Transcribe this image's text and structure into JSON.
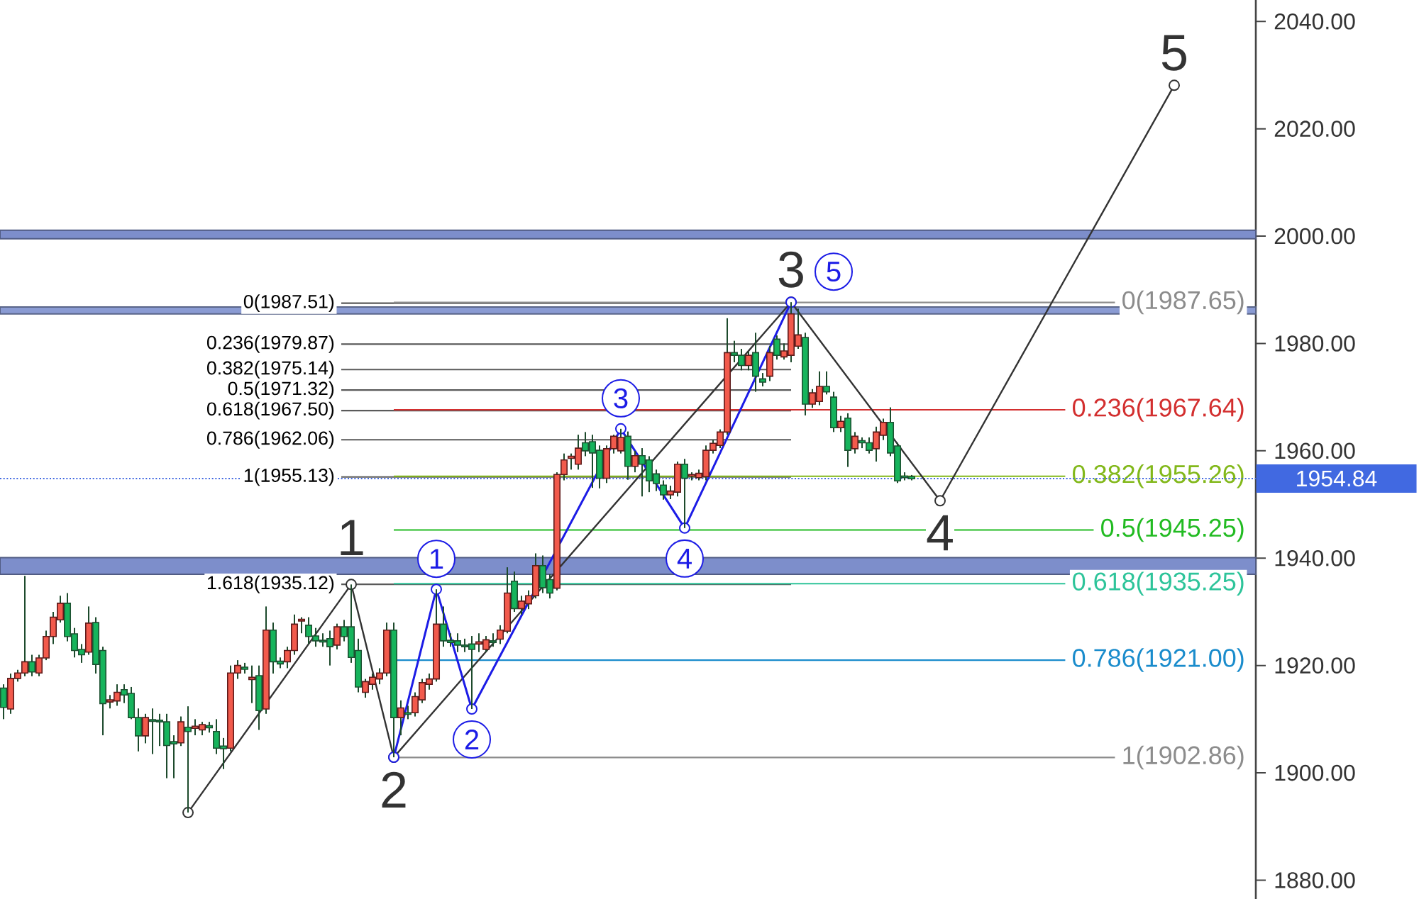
{
  "chart_data": {
    "type": "candlestick",
    "categories": [
      null,
      null,
      null,
      null,
      null,
      null,
      null,
      null,
      null,
      null,
      null,
      null,
      null,
      null,
      null,
      null,
      null,
      null,
      null,
      null,
      null,
      null,
      null,
      null,
      null,
      null,
      null,
      null,
      null,
      null,
      null,
      null,
      null,
      null,
      null,
      null,
      null,
      null,
      null,
      null,
      null,
      null,
      null,
      null,
      null,
      null,
      null,
      null,
      null,
      null,
      null,
      null,
      null,
      null,
      null,
      null,
      null,
      null,
      null,
      null,
      null,
      null,
      null,
      null,
      null,
      null,
      null,
      null,
      null,
      null,
      null,
      null,
      null,
      null,
      null,
      null,
      null,
      null,
      null,
      null,
      null,
      null,
      null,
      null,
      null,
      null,
      null,
      null,
      null,
      null,
      null,
      null,
      null,
      null,
      null,
      null,
      null,
      null,
      null,
      null,
      null,
      null,
      null,
      null,
      null,
      null,
      null,
      null,
      null,
      null,
      null,
      null,
      null,
      null,
      null,
      null,
      null,
      null,
      null,
      null,
      null,
      null,
      null,
      null,
      null,
      null,
      null,
      null,
      null,
      null,
      null,
      null,
      null,
      null,
      null,
      null,
      null,
      null,
      null,
      null,
      null,
      null,
      null,
      null,
      null,
      null,
      null,
      null,
      null,
      null,
      null,
      null,
      null,
      null,
      null,
      null,
      null,
      null,
      null,
      null,
      null,
      null,
      null,
      null,
      null,
      null,
      null,
      null,
      null,
      null,
      null,
      null,
      null,
      null,
      null,
      null,
      null
    ],
    "ohlc": [
      [
        1915.8,
        1916.5,
        1910.0,
        1912.2
      ],
      [
        1911.9,
        1918.5,
        1911.0,
        1917.6
      ],
      [
        1917.6,
        1919.2,
        1917.0,
        1918.6
      ],
      [
        1918.6,
        1936.7,
        1918.0,
        1920.7
      ],
      [
        1920.7,
        1922.0,
        1918.0,
        1918.8
      ],
      [
        1918.6,
        1922.0,
        1918.0,
        1921.4
      ],
      [
        1921.4,
        1926.5,
        1921.0,
        1925.4
      ],
      [
        1925.4,
        1930.0,
        1924.0,
        1929.0
      ],
      [
        1928.5,
        1933.0,
        1928.0,
        1931.6
      ],
      [
        1931.6,
        1933.5,
        1924.5,
        1925.4
      ],
      [
        1925.9,
        1927.0,
        1921.5,
        1922.8
      ],
      [
        1923.0,
        1924.0,
        1920.5,
        1922.0
      ],
      [
        1922.5,
        1931.0,
        1922.0,
        1927.9
      ],
      [
        1928.0,
        1929.0,
        1918.5,
        1920.2
      ],
      [
        1922.8,
        1923.5,
        1907.0,
        1912.9
      ],
      [
        1913.2,
        1914.5,
        1912.0,
        1913.6
      ],
      [
        1913.4,
        1916.5,
        1912.5,
        1915.0
      ],
      [
        1915.5,
        1916.5,
        1913.0,
        1914.5
      ],
      [
        1914.8,
        1916.0,
        1910.0,
        1910.3
      ],
      [
        1910.3,
        1912.0,
        1904.0,
        1906.9
      ],
      [
        1906.9,
        1911.0,
        1905.5,
        1910.3
      ],
      [
        1909.9,
        1912.0,
        1903.5,
        1909.6
      ],
      [
        1909.8,
        1911.0,
        1905.0,
        1909.5
      ],
      [
        1909.5,
        1911.0,
        1899.0,
        1905.1
      ],
      [
        1905.8,
        1907.0,
        1899.0,
        1905.4
      ],
      [
        1905.6,
        1910.5,
        1905.0,
        1909.5
      ],
      [
        1908.5,
        1912.4,
        1892.6,
        1907.7
      ],
      [
        1908.3,
        1910.0,
        1907.0,
        1908.7
      ],
      [
        1908.0,
        1909.5,
        1907.0,
        1909.0
      ],
      [
        1908.8,
        1909.5,
        1907.5,
        1908.4
      ],
      [
        1907.7,
        1910.0,
        1903.5,
        1904.6
      ],
      [
        1905.0,
        1906.5,
        1900.7,
        1904.5
      ],
      [
        1904.6,
        1920.0,
        1904.0,
        1918.6
      ],
      [
        1918.6,
        1921.0,
        1917.5,
        1920.0
      ],
      [
        1919.7,
        1920.5,
        1918.5,
        1919.3
      ],
      [
        1917.4,
        1920.0,
        1913.0,
        1917.8
      ],
      [
        1918.1,
        1920.0,
        1908.0,
        1911.6
      ],
      [
        1911.9,
        1931.0,
        1911.0,
        1926.6
      ],
      [
        1926.6,
        1928.0,
        1918.5,
        1920.7
      ],
      [
        1920.8,
        1921.5,
        1919.5,
        1920.3
      ],
      [
        1920.7,
        1923.5,
        1919.5,
        1922.8
      ],
      [
        1922.8,
        1929.5,
        1922.0,
        1927.7
      ],
      [
        1928.3,
        1929.0,
        1926.0,
        1928.6
      ],
      [
        1927.5,
        1929.0,
        1924.0,
        1925.4
      ],
      [
        1925.5,
        1927.0,
        1923.5,
        1924.6
      ],
      [
        1924.7,
        1926.0,
        1923.5,
        1924.4
      ],
      [
        1925.0,
        1926.5,
        1920.0,
        1923.5
      ],
      [
        1923.8,
        1927.8,
        1923.0,
        1927.2
      ],
      [
        1927.2,
        1928.5,
        1924.5,
        1925.4
      ],
      [
        1927.2,
        1935.1,
        1920.5,
        1921.5
      ],
      [
        1922.8,
        1925.0,
        1915.0,
        1916.0
      ],
      [
        1915.0,
        1917.5,
        1914.0,
        1917.0
      ],
      [
        1916.5,
        1918.5,
        1915.5,
        1917.8
      ],
      [
        1917.5,
        1919.5,
        1916.5,
        1918.6
      ],
      [
        1918.6,
        1928.0,
        1918.0,
        1926.6
      ],
      [
        1926.6,
        1928.0,
        1902.9,
        1910.3
      ],
      [
        1910.3,
        1913.5,
        1907.0,
        1912.1
      ],
      [
        1911.2,
        1912.5,
        1910.0,
        1910.9
      ],
      [
        1911.2,
        1915.0,
        1910.5,
        1914.2
      ],
      [
        1913.6,
        1917.5,
        1913.0,
        1916.8
      ],
      [
        1916.5,
        1918.5,
        1915.5,
        1917.5
      ],
      [
        1917.5,
        1934.2,
        1917.0,
        1927.7
      ],
      [
        1927.7,
        1931.0,
        1923.5,
        1924.6
      ],
      [
        1924.7,
        1926.0,
        1923.5,
        1924.3
      ],
      [
        1924.6,
        1926.0,
        1922.5,
        1923.8
      ],
      [
        1923.8,
        1925.0,
        1922.5,
        1923.5
      ],
      [
        1924.0,
        1925.5,
        1911.9,
        1923.0
      ],
      [
        1924.0,
        1926.0,
        1922.5,
        1924.4
      ],
      [
        1923.0,
        1925.5,
        1922.5,
        1924.8
      ],
      [
        1924.6,
        1926.0,
        1923.5,
        1924.3
      ],
      [
        1924.9,
        1927.5,
        1924.0,
        1926.6
      ],
      [
        1926.4,
        1938.3,
        1926.0,
        1933.5
      ],
      [
        1935.7,
        1937.5,
        1930.0,
        1930.6
      ],
      [
        1930.6,
        1933.0,
        1929.5,
        1932.0
      ],
      [
        1931.5,
        1934.0,
        1930.5,
        1933.0
      ],
      [
        1933.0,
        1940.9,
        1932.5,
        1938.6
      ],
      [
        1938.6,
        1940.5,
        1933.5,
        1934.5
      ],
      [
        1936.0,
        1937.0,
        1932.5,
        1933.5
      ],
      [
        1934.4,
        1956.0,
        1934.0,
        1955.6
      ],
      [
        1955.6,
        1959.5,
        1954.5,
        1958.3
      ],
      [
        1958.6,
        1959.5,
        1956.5,
        1959.0
      ],
      [
        1957.5,
        1963.0,
        1956.5,
        1960.5
      ],
      [
        1961.5,
        1963.5,
        1959.0,
        1960.0
      ],
      [
        1961.7,
        1963.0,
        1953.1,
        1959.6
      ],
      [
        1960.1,
        1961.0,
        1953.0,
        1954.9
      ],
      [
        1954.9,
        1961.0,
        1954.0,
        1960.4
      ],
      [
        1960.4,
        1963.0,
        1959.5,
        1962.7
      ],
      [
        1960.0,
        1964.1,
        1959.5,
        1962.5
      ],
      [
        1962.7,
        1963.6,
        1954.6,
        1957.1
      ],
      [
        1957.1,
        1960.0,
        1956.0,
        1959.1
      ],
      [
        1959.1,
        1960.5,
        1951.5,
        1957.5
      ],
      [
        1958.3,
        1959.0,
        1952.3,
        1954.4
      ],
      [
        1955.7,
        1956.5,
        1952.5,
        1953.9
      ],
      [
        1953.6,
        1954.5,
        1950.9,
        1951.8
      ],
      [
        1951.8,
        1953.5,
        1951.0,
        1952.5
      ],
      [
        1952.3,
        1958.0,
        1951.5,
        1957.5
      ],
      [
        1957.5,
        1958.5,
        1945.6,
        1954.9
      ],
      [
        1955.3,
        1956.0,
        1954.5,
        1955.6
      ],
      [
        1955.0,
        1956.5,
        1954.5,
        1955.8
      ],
      [
        1955.2,
        1961.0,
        1954.5,
        1960.1
      ],
      [
        1960.1,
        1962.0,
        1959.5,
        1961.4
      ],
      [
        1961.0,
        1964.0,
        1960.5,
        1963.5
      ],
      [
        1963.5,
        1984.7,
        1963.0,
        1978.3
      ],
      [
        1978.3,
        1980.5,
        1976.5,
        1977.8
      ],
      [
        1977.8,
        1979.0,
        1975.0,
        1975.9
      ],
      [
        1975.9,
        1978.5,
        1975.0,
        1977.8
      ],
      [
        1978.3,
        1982.0,
        1971.0,
        1973.9
      ],
      [
        1973.4,
        1974.5,
        1972.0,
        1972.8
      ],
      [
        1973.9,
        1979.5,
        1973.0,
        1978.3
      ],
      [
        1980.8,
        1981.5,
        1977.0,
        1977.8
      ],
      [
        1977.5,
        1980.0,
        1977.0,
        1978.6
      ],
      [
        1977.8,
        1987.7,
        1976.5,
        1985.5
      ],
      [
        1979.5,
        1986.5,
        1979.0,
        1981.6
      ],
      [
        1981.1,
        1982.0,
        1966.6,
        1968.7
      ],
      [
        1968.7,
        1971.5,
        1968.0,
        1970.8
      ],
      [
        1969.2,
        1974.8,
        1968.5,
        1972.0
      ],
      [
        1972.0,
        1974.8,
        1970.5,
        1971.0
      ],
      [
        1970.0,
        1971.0,
        1963.5,
        1964.3
      ],
      [
        1964.3,
        1966.5,
        1963.5,
        1965.5
      ],
      [
        1966.1,
        1967.0,
        1957.0,
        1960.1
      ],
      [
        1960.4,
        1963.5,
        1959.5,
        1962.7
      ],
      [
        1961.9,
        1962.5,
        1960.5,
        1961.5
      ],
      [
        1961.5,
        1962.5,
        1959.5,
        1960.1
      ],
      [
        1960.4,
        1964.5,
        1958.0,
        1963.5
      ],
      [
        1962.9,
        1966.0,
        1962.0,
        1965.3
      ],
      [
        1965.3,
        1968.1,
        1959.0,
        1959.6
      ],
      [
        1960.9,
        1961.5,
        1954.0,
        1954.4
      ],
      [
        1955.3,
        1956.0,
        1954.5,
        1955.0
      ],
      [
        1955.2,
        1955.5,
        1954.5,
        1954.8
      ],
      null,
      null,
      null,
      null,
      null,
      null,
      null,
      null,
      null,
      null,
      null,
      null,
      null,
      null,
      null,
      null,
      null,
      null,
      null,
      null,
      null,
      null,
      null,
      null,
      null,
      null,
      null,
      null,
      null,
      null,
      null,
      null,
      null,
      null,
      null,
      null,
      null,
      null,
      null,
      null,
      null,
      null,
      null,
      null,
      null,
      null,
      null,
      null
    ],
    "ylim": [
      1876.5,
      2044
    ],
    "yticks": [
      {
        "value": 1880,
        "label": "1880.00"
      },
      {
        "value": 1900,
        "label": "1900.00"
      },
      {
        "value": 1920,
        "label": "1920.00"
      },
      {
        "value": 1940,
        "label": "1940.00"
      },
      {
        "value": 1960,
        "label": "1960.00"
      },
      {
        "value": 1980,
        "label": "1980.00"
      },
      {
        "value": 2000,
        "label": "2000.00"
      },
      {
        "value": 2020,
        "label": "2020.00"
      },
      {
        "value": 2040,
        "label": "2040.00"
      }
    ],
    "tick_labels": "y",
    "marker": "circle",
    "series": [
      {
        "type": "line",
        "color": "#333333",
        "values": [
          null,
          null,
          null,
          null,
          null,
          null,
          null,
          null,
          null,
          null,
          null,
          null,
          null,
          null,
          null,
          null,
          null,
          null,
          null,
          null,
          null,
          null,
          null,
          null,
          null,
          null,
          1892.6,
          null,
          null,
          null,
          null,
          null,
          null,
          null,
          null,
          null,
          null,
          null,
          null,
          null,
          null,
          null,
          null,
          null,
          null,
          null,
          null,
          null,
          null,
          1935.1,
          null,
          null,
          null,
          null,
          null,
          1902.9,
          null,
          null,
          null,
          null,
          null,
          null,
          null,
          null,
          null,
          null,
          null,
          null,
          null,
          null,
          null,
          null,
          null,
          null,
          null,
          null,
          null,
          null,
          null,
          null,
          null,
          null,
          null,
          null,
          null,
          null,
          null,
          null,
          null,
          null,
          null,
          null,
          null,
          null,
          null,
          null,
          null,
          null,
          null,
          null,
          null,
          null,
          null,
          null,
          null,
          null,
          null,
          null,
          null,
          null,
          null,
          1987.7,
          null,
          null,
          null,
          null,
          null,
          null,
          null,
          null,
          null,
          null,
          null,
          null,
          null,
          null,
          null,
          null,
          null,
          null,
          null,
          null,
          1950.7,
          null,
          null,
          null,
          null,
          null,
          null,
          null,
          null,
          null,
          null,
          null,
          null,
          null,
          null,
          null,
          null,
          null,
          null,
          null,
          null,
          null,
          null,
          null,
          null,
          null,
          null,
          null,
          null,
          null,
          null,
          null,
          null,
          2028.1,
          null,
          null,
          null,
          null,
          null,
          null,
          null,
          null,
          null,
          null,
          null
        ]
      },
      {
        "type": "line",
        "color": "#1c1ce6",
        "values": [
          null,
          null,
          null,
          null,
          null,
          null,
          null,
          null,
          null,
          null,
          null,
          null,
          null,
          null,
          null,
          null,
          null,
          null,
          null,
          null,
          null,
          null,
          null,
          null,
          null,
          null,
          null,
          null,
          null,
          null,
          null,
          null,
          null,
          null,
          null,
          null,
          null,
          null,
          null,
          null,
          null,
          null,
          null,
          null,
          null,
          null,
          null,
          null,
          null,
          null,
          null,
          null,
          null,
          null,
          null,
          1902.9,
          null,
          null,
          null,
          null,
          null,
          1934.2,
          null,
          null,
          null,
          null,
          1911.9,
          null,
          null,
          null,
          null,
          null,
          null,
          null,
          null,
          null,
          null,
          null,
          null,
          null,
          null,
          null,
          null,
          null,
          null,
          null,
          null,
          1964.1,
          null,
          null,
          null,
          null,
          null,
          null,
          null,
          null,
          1945.6,
          null,
          null,
          null,
          null,
          null,
          null,
          null,
          null,
          null,
          null,
          null,
          null,
          null,
          null,
          1987.7,
          null,
          null,
          null,
          null,
          null,
          null,
          null,
          null,
          null,
          null,
          null,
          null,
          null,
          null,
          null,
          null,
          null,
          null,
          null,
          null,
          null,
          null,
          null,
          null,
          null,
          null,
          null,
          null,
          null,
          null,
          null,
          null,
          null,
          null,
          null,
          null,
          null,
          null,
          null,
          null,
          null,
          null,
          null,
          null,
          null,
          null,
          null,
          null,
          null,
          null,
          null,
          null,
          null,
          null,
          null,
          null,
          null,
          null,
          null,
          null,
          null,
          null,
          null,
          null,
          null
        ]
      }
    ],
    "annotations": [
      {
        "text": "1",
        "y": 1935.1
      },
      {
        "text": "2",
        "y": 1902.9
      },
      {
        "text": "3",
        "y": 1987.7
      },
      {
        "text": "4",
        "y": 1950.7
      },
      {
        "text": "5",
        "y": 2028.1
      },
      {
        "text": "1",
        "y": 1934.2
      },
      {
        "text": "2",
        "y": 1911.9
      },
      {
        "text": "3",
        "y": 1964.1
      },
      {
        "text": "4",
        "y": 1945.6
      },
      {
        "text": "5",
        "y": 1987.7
      }
    ],
    "ref_lines": [
      {
        "axis": "y",
        "value": 1987.51,
        "label": "0(1987.51)",
        "color": "#5a5a5a"
      },
      {
        "axis": "y",
        "value": 1979.87,
        "label": "0.236(1979.87)",
        "color": "#5a5a5a"
      },
      {
        "axis": "y",
        "value": 1975.14,
        "label": "0.382(1975.14)",
        "color": "#5a5a5a"
      },
      {
        "axis": "y",
        "value": 1971.32,
        "label": "0.5(1971.32)",
        "color": "#5a5a5a"
      },
      {
        "axis": "y",
        "value": 1967.5,
        "label": "0.618(1967.50)",
        "color": "#5a5a5a"
      },
      {
        "axis": "y",
        "value": 1962.06,
        "label": "0.786(1962.06)",
        "color": "#5a5a5a"
      },
      {
        "axis": "y",
        "value": 1955.13,
        "label": "1(1955.13)",
        "color": "#5a5a5a"
      },
      {
        "axis": "y",
        "value": 1935.12,
        "label": "1.618(1935.12)",
        "color": "#5a5a5a"
      },
      {
        "axis": "y",
        "value": 1987.65,
        "label": "0(1987.65)",
        "color": "#8c8c8c"
      },
      {
        "axis": "y",
        "value": 1967.64,
        "label": "0.236(1967.64)",
        "color": "#d32f2f"
      },
      {
        "axis": "y",
        "value": 1955.26,
        "label": "0.382(1955.26)",
        "color": "#82b81a"
      },
      {
        "axis": "y",
        "value": 1945.25,
        "label": "0.5(1945.25)",
        "color": "#22bb22"
      },
      {
        "axis": "y",
        "value": 1935.25,
        "label": "0.618(1935.25)",
        "color": "#2ec49a"
      },
      {
        "axis": "y",
        "value": 1921.0,
        "label": "0.786(1921.00)",
        "color": "#1a8ccc"
      },
      {
        "axis": "y",
        "value": 1902.86,
        "label": "1(1902.86)",
        "color": "#8c8c8c"
      },
      {
        "axis": "y",
        "value": 1954.84,
        "label": "1954.84",
        "color": "#4169e1",
        "line_style": "dotted"
      }
    ],
    "bands": [
      {
        "axis": "y",
        "from": 1937.0,
        "to": 1940.1,
        "color": "#7d8ecb"
      },
      {
        "axis": "y",
        "from": 1985.5,
        "to": 1986.8,
        "color": "#8a9bd3"
      },
      {
        "axis": "y",
        "from": 1999.5,
        "to": 2001.1,
        "color": "#7d8ecb"
      }
    ]
  }
}
